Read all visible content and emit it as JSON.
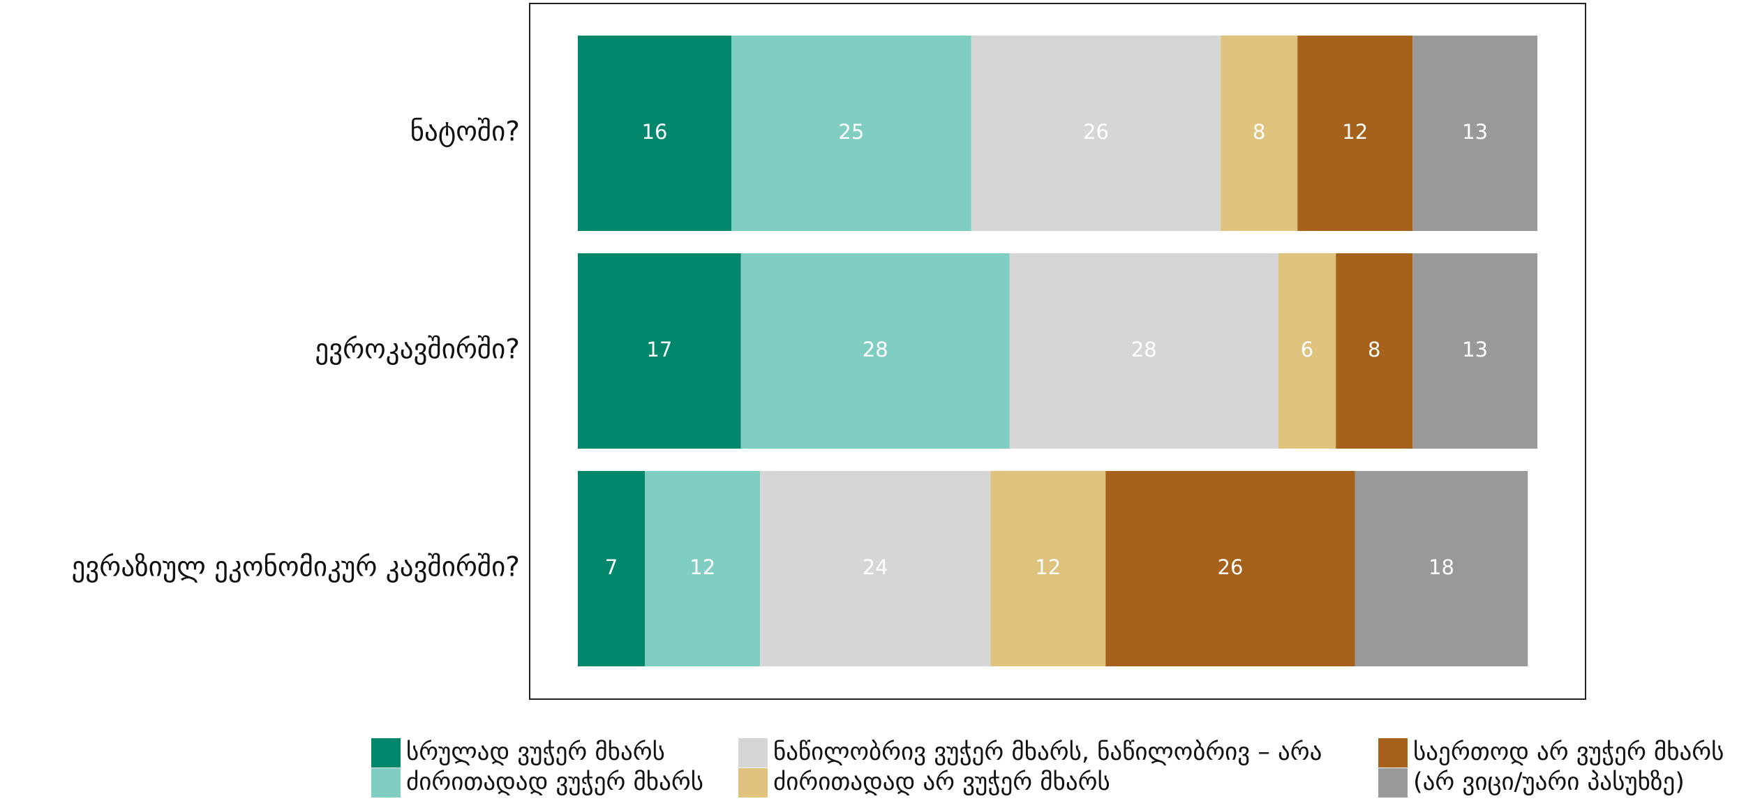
{
  "chart_data": {
    "type": "stacked-bar-horizontal",
    "categories": [
      "ნატოში?",
      "ევროკავშირში?",
      "ევრაზიულ ეკონომიკურ კავშირში?"
    ],
    "xlim": [
      0,
      100
    ],
    "series": [
      {
        "name": "სრულად ვუჭერ მხარს",
        "color": "#00876c",
        "values": [
          16,
          17,
          7
        ]
      },
      {
        "name": "ძირითადად ვუჭერ მხარს",
        "color": "#80cdc1",
        "values": [
          25,
          28,
          12
        ]
      },
      {
        "name": "ნაწილობრივ ვუჭერ მხარს, ნაწილობრივ – არა",
        "color": "#d6d6d6",
        "values": [
          26,
          28,
          24
        ]
      },
      {
        "name": "ძირითადად არ ვუჭერ მხარს",
        "color": "#dfc27d",
        "values": [
          8,
          6,
          12
        ]
      },
      {
        "name": "საერთოდ არ ვუჭერ მხარს",
        "color": "#a6611a",
        "values": [
          12,
          8,
          26
        ]
      },
      {
        "name": "(არ ვიცი/უარი პასუხზე)",
        "color": "#999999",
        "values": [
          13,
          13,
          18
        ]
      }
    ],
    "legend": "bottom"
  }
}
